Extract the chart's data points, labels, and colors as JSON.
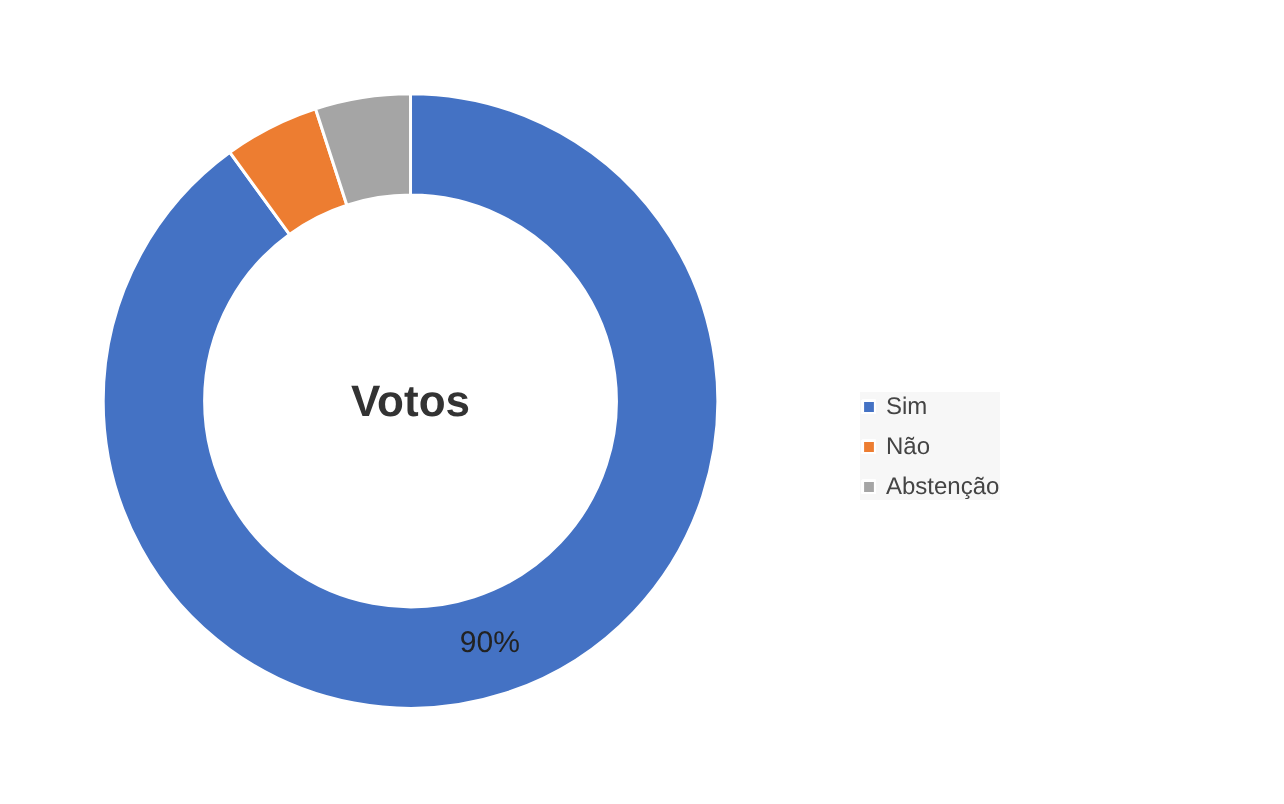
{
  "chart_data": {
    "type": "donut",
    "title": "Votos",
    "categories": [
      "Sim",
      "Não",
      "Abstenção"
    ],
    "values": [
      90,
      5,
      5
    ],
    "colors": [
      "#4472c4",
      "#ed7d31",
      "#a5a5a5"
    ],
    "value_labels": [
      "90%",
      null,
      null
    ],
    "legend": "right"
  }
}
